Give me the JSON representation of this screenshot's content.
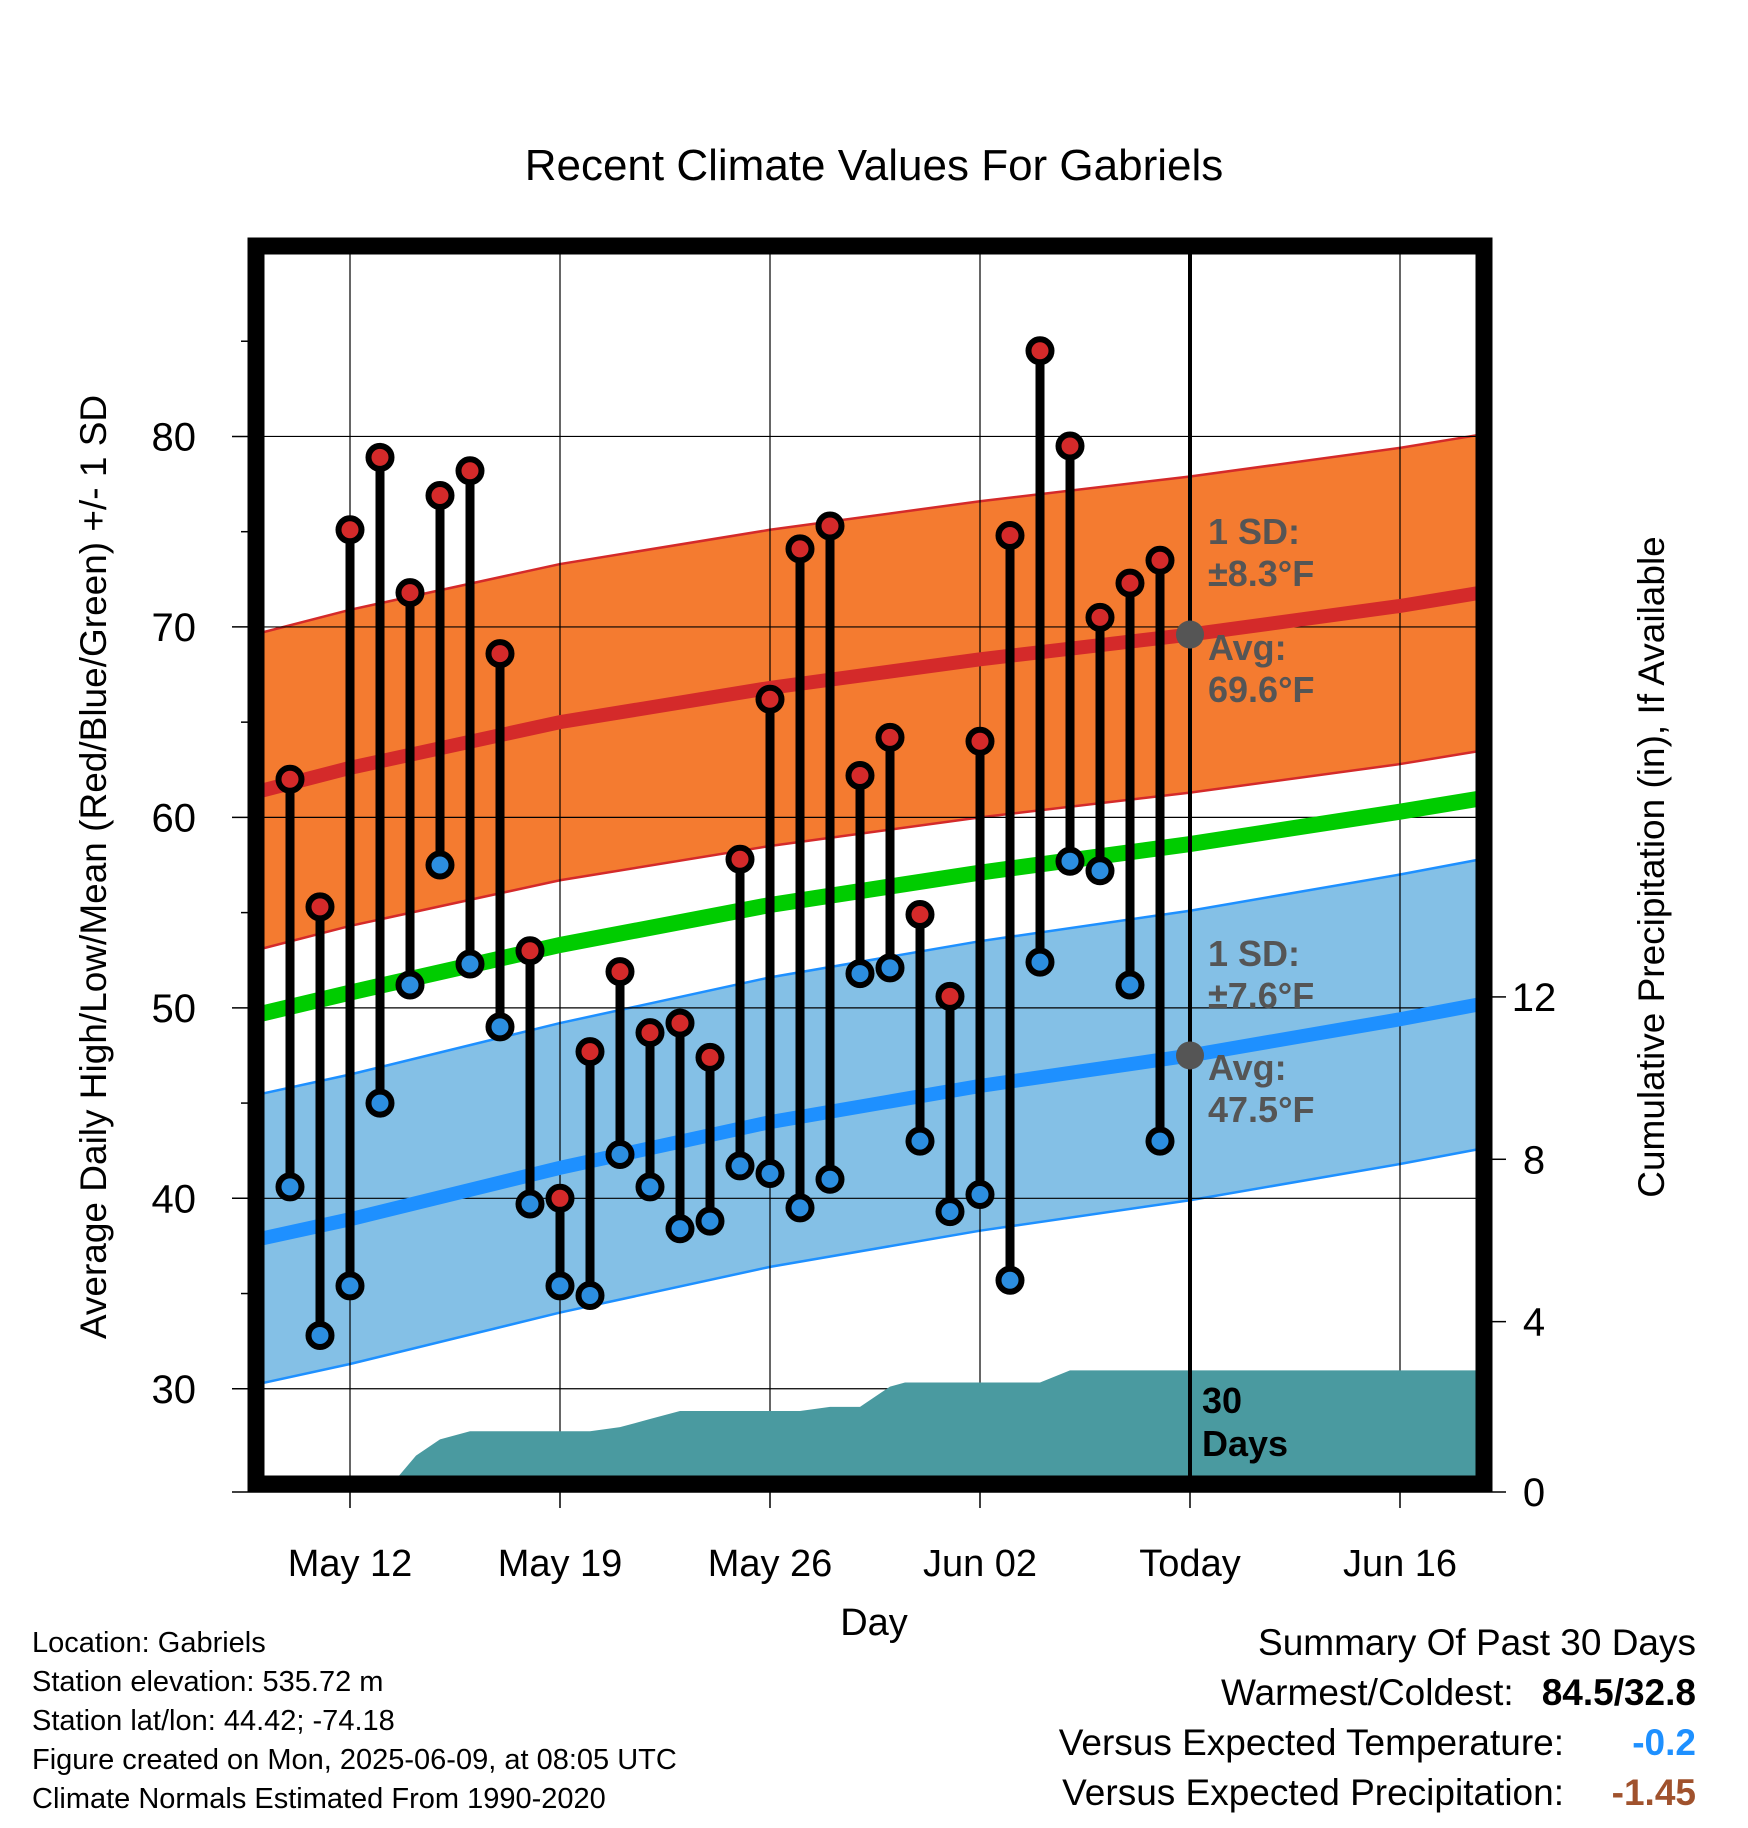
{
  "title": "Recent Climate Values For Gabriels",
  "y_axis_label": "Average Daily High/Low/Mean (Red/Blue/Green) +/- 1 SD",
  "y2_axis_label": "Cumulative Precipitation (in), If Available",
  "x_axis_label": "Day",
  "info": {
    "location": "Location: Gabriels",
    "elevation": "Station elevation: 535.72 m",
    "latlon": "Station lat/lon: 44.42; -74.18",
    "created": "Figure created on Mon, 2025-06-09, at 08:05 UTC",
    "normals": "Climate Normals Estimated From 1990-2020"
  },
  "summary": {
    "title": "Summary Of Past 30 Days",
    "warmest_coldest_label": "Warmest/Coldest:",
    "warmest_coldest_value": "84.5/32.8",
    "temp_label": "Versus Expected Temperature:",
    "temp_value": "-0.2",
    "precip_label": "Versus Expected Precipitation:",
    "precip_value": "-1.45"
  },
  "annotations": {
    "high_sd_line1": "1 SD:",
    "high_sd_line2": "±8.3°F",
    "high_avg_line1": "Avg:",
    "high_avg_line2": "69.6°F",
    "low_sd_line1": "1 SD:",
    "low_sd_line2": "±7.6°F",
    "low_avg_line1": "Avg:",
    "low_avg_line2": "47.5°F",
    "days_line1": "30",
    "days_line2": "Days"
  },
  "colors": {
    "high_band": "#f47b30",
    "high_line": "#d42a2a",
    "low_band": "#84c0e6",
    "low_line": "#1e90ff",
    "mean_line": "#00cc00",
    "precip": "#4a9aa0",
    "high_marker": "#d42a2a",
    "low_marker": "#2c8ee0",
    "avg_marker": "#555555",
    "annotation_text": "#555555"
  },
  "chart_data": {
    "type": "line",
    "x_ticks": [
      {
        "day": 0,
        "label": "May 12"
      },
      {
        "day": 7,
        "label": "May 19"
      },
      {
        "day": 14,
        "label": "May 26"
      },
      {
        "day": 21,
        "label": "Jun 02"
      },
      {
        "day": 28,
        "label": "Today"
      },
      {
        "day": 35,
        "label": "Jun 16"
      }
    ],
    "xlim": [
      -3.2,
      37.7
    ],
    "ylim": [
      25,
      90
    ],
    "y_ticks": [
      30,
      40,
      50,
      60,
      70,
      80
    ],
    "y2lim": [
      0,
      30.5
    ],
    "y2_ticks": [
      0,
      4,
      8,
      12
    ],
    "today_day": 28,
    "normals": {
      "x": [
        -3.2,
        0,
        7,
        14,
        21,
        28,
        35,
        37.7
      ],
      "high_avg": [
        61.3,
        62.6,
        65.0,
        66.8,
        68.3,
        69.6,
        71.1,
        71.8
      ],
      "high_sd": 8.3,
      "low_avg": [
        37.8,
        38.9,
        41.6,
        44.0,
        45.9,
        47.5,
        49.4,
        50.2
      ],
      "low_sd": 7.6,
      "mean": [
        49.6,
        50.8,
        53.3,
        55.4,
        57.1,
        58.6,
        60.3,
        61.0
      ]
    },
    "daily": {
      "day": [
        -2,
        -1,
        0,
        1,
        2,
        3,
        4,
        5,
        6,
        7,
        8,
        9,
        10,
        11,
        12,
        13,
        14,
        15,
        16,
        17,
        18,
        19,
        20,
        21,
        22,
        23,
        24,
        25,
        26,
        27
      ],
      "high": [
        62.0,
        55.3,
        75.1,
        78.9,
        71.8,
        76.9,
        78.2,
        68.6,
        53.0,
        40.0,
        47.7,
        51.9,
        48.7,
        49.2,
        47.4,
        57.8,
        66.2,
        74.1,
        75.3,
        62.2,
        64.2,
        54.9,
        50.6,
        64.0,
        74.8,
        84.5,
        79.5,
        70.5,
        72.3,
        73.5
      ],
      "low": [
        40.6,
        32.8,
        35.4,
        45.0,
        51.2,
        57.5,
        52.3,
        49.0,
        39.7,
        35.4,
        34.9,
        42.3,
        40.6,
        38.4,
        38.8,
        41.7,
        41.3,
        39.5,
        41.0,
        51.8,
        52.1,
        43.0,
        39.3,
        40.2,
        35.7,
        52.4,
        57.7,
        57.2,
        51.2,
        43.0
      ]
    },
    "precip_cumulative": {
      "day": [
        1.2,
        1.4,
        2.2,
        3.0,
        4.0,
        5.0,
        6.0,
        7.0,
        8.0,
        9.0,
        10.0,
        11.0,
        12.0,
        13.0,
        14.0,
        15.0,
        16.0,
        17.0,
        18.0,
        18.5,
        19.0,
        20.0,
        21.0,
        22.0,
        23.0,
        24.0,
        25.0,
        27.0,
        28.0,
        30.0,
        35.0,
        37.7
      ],
      "inches": [
        0.0,
        0.0,
        0.7,
        1.1,
        1.3,
        1.3,
        1.3,
        1.3,
        1.3,
        1.4,
        1.6,
        1.8,
        1.8,
        1.8,
        1.8,
        1.8,
        1.9,
        1.9,
        2.4,
        2.5,
        2.5,
        2.5,
        2.5,
        2.5,
        2.5,
        2.8,
        2.8,
        2.8,
        2.8,
        2.8,
        2.8,
        2.8
      ]
    }
  }
}
